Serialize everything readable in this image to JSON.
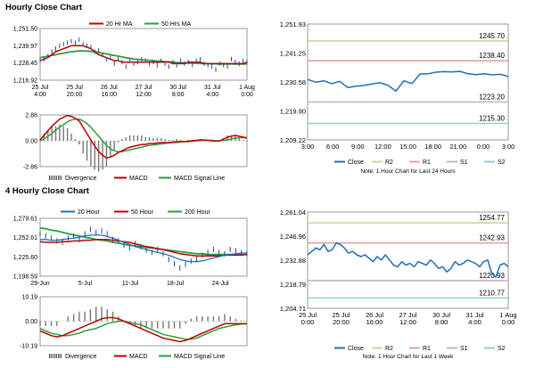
{
  "sections": {
    "hourly_title": "Hourly Close Chart",
    "four_hourly_title": "4 Hourly Close Chart"
  },
  "colors": {
    "price": "#1f4e99",
    "ma_short": "#c00000",
    "ma_long": "#2e9e3e",
    "close": "#1f6fb5",
    "r2": "#c6d9a0",
    "r1": "#e6a0a0",
    "s1": "#c7b3d4",
    "s2": "#92d0d6",
    "divergence_pos": "#666666",
    "divergence_neg": "#aaaaaa"
  },
  "chart_data": [
    {
      "id": "hourly_price",
      "type": "line",
      "legend": [
        "20 Hr MA",
        "50 Hrs MA"
      ],
      "ylim": [
        1216.92,
        1251.5
      ],
      "yticks": [
        1251.5,
        1239.97,
        1228.45,
        1216.92
      ],
      "ytick_labels": [
        "1,251.50",
        "1,239.97",
        "1,228.45",
        "1,216.92"
      ],
      "xtick_labels": [
        [
          "25 Jul",
          "4:00"
        ],
        [
          "25 Jul",
          "20:00"
        ],
        [
          "26 Jul",
          "16:00"
        ],
        [
          "27 Jul",
          "12:00"
        ],
        [
          "30 Jul",
          "8:00"
        ],
        [
          "31 Jul",
          "4:00"
        ],
        [
          "1 Aug",
          "0:00"
        ]
      ],
      "price": [
        1230,
        1231,
        1233,
        1236,
        1238,
        1240,
        1241,
        1242,
        1243,
        1242,
        1244,
        1241,
        1240,
        1239,
        1236,
        1237,
        1234,
        1231,
        1232,
        1228,
        1231,
        1229,
        1226,
        1230,
        1228,
        1229,
        1231,
        1230,
        1228,
        1229,
        1227,
        1230,
        1228,
        1226,
        1229,
        1227,
        1230,
        1228,
        1229,
        1227,
        1230,
        1231,
        1228,
        1227,
        1226,
        1224,
        1228,
        1227,
        1226,
        1231,
        1229,
        1228,
        1230,
        1229
      ],
      "ma20": [
        1230,
        1231,
        1232,
        1234,
        1236,
        1237,
        1238,
        1239,
        1240,
        1240,
        1240,
        1240,
        1239,
        1238,
        1236,
        1234,
        1233,
        1232,
        1231,
        1230,
        1230,
        1229,
        1229,
        1229,
        1229,
        1229,
        1229,
        1229,
        1229,
        1229,
        1229,
        1229,
        1229,
        1229,
        1228,
        1228,
        1228,
        1228,
        1229,
        1229,
        1229,
        1229,
        1228,
        1228,
        1228,
        1228,
        1228,
        1228,
        1228,
        1228,
        1228,
        1228,
        1228,
        1229
      ],
      "ma50": [
        1232,
        1232.5,
        1233,
        1233.5,
        1234,
        1234.5,
        1235,
        1235.5,
        1236,
        1236.2,
        1236.5,
        1236.5,
        1236.4,
        1236.2,
        1236,
        1235.5,
        1235,
        1234.5,
        1234,
        1233.5,
        1233,
        1232.5,
        1232,
        1231.5,
        1231,
        1230.8,
        1230.6,
        1230.4,
        1230.2,
        1230,
        1229.8,
        1229.6,
        1229.4,
        1229.2,
        1229,
        1228.8,
        1228.6,
        1228.5,
        1228.4,
        1228.3,
        1228.2,
        1228.1,
        1228,
        1228,
        1227.9,
        1227.9,
        1227.8,
        1227.8,
        1227.8,
        1227.8,
        1227.8,
        1227.8,
        1227.8,
        1227.8
      ]
    },
    {
      "id": "hourly_macd",
      "type": "line",
      "legend": [
        "Divergence",
        "MACD",
        "MACD Signal Line"
      ],
      "ylim": [
        -2.86,
        2.86
      ],
      "yticks": [
        2.86,
        0,
        -2.86
      ],
      "ytick_labels": [
        "2.86",
        "0.00",
        "-2.86"
      ],
      "macd": [
        0.1,
        0.6,
        1.1,
        1.6,
        2.0,
        2.4,
        2.6,
        2.8,
        2.7,
        2.5,
        2.2,
        1.5,
        0.8,
        0.1,
        -0.6,
        -1.2,
        -1.6,
        -1.9,
        -1.8,
        -1.6,
        -1.3,
        -1.1,
        -0.9,
        -0.7,
        -0.6,
        -0.5,
        -0.4,
        -0.4,
        -0.3,
        -0.3,
        -0.25,
        -0.2,
        -0.2,
        -0.2,
        -0.15,
        -0.1,
        -0.1,
        -0.1,
        -0.05,
        0,
        0.05,
        0.1,
        0.1,
        0.05,
        0,
        -0.05,
        0,
        0.2,
        0.4,
        0.5,
        0.6,
        0.5,
        0.4,
        0.3
      ],
      "signal": [
        0,
        0.2,
        0.5,
        0.8,
        1.2,
        1.5,
        1.8,
        2.1,
        2.3,
        2.4,
        2.4,
        2.2,
        1.9,
        1.5,
        1.0,
        0.5,
        0.0,
        -0.5,
        -0.9,
        -1.1,
        -1.2,
        -1.2,
        -1.1,
        -1.0,
        -0.9,
        -0.8,
        -0.7,
        -0.6,
        -0.5,
        -0.45,
        -0.4,
        -0.35,
        -0.3,
        -0.25,
        -0.2,
        -0.2,
        -0.15,
        -0.1,
        -0.1,
        -0.05,
        0,
        0,
        0.05,
        0.05,
        0.05,
        0,
        0,
        0.05,
        0.1,
        0.2,
        0.3,
        0.35,
        0.35,
        0.35
      ]
    },
    {
      "id": "hourly_levels",
      "type": "line",
      "ylim": [
        1209.22,
        1251.93
      ],
      "yticks": [
        1251.93,
        1241.25,
        1230.58,
        1219.9,
        1209.22
      ],
      "ytick_labels": [
        "1,251.93",
        "1,241.25",
        "1,230.58",
        "1,219.90",
        "1,209.22"
      ],
      "xtick_labels": [
        "3:00",
        "6:00",
        "9:00",
        "12:00",
        "15:00",
        "18:00",
        "21:00",
        "0:00",
        "3:00"
      ],
      "close": [
        1231.5,
        1230.5,
        1231,
        1230,
        1230.8,
        1228.5,
        1229,
        1229.3,
        1229.8,
        1230.3,
        1229.4,
        1227.2,
        1231,
        1230,
        1233.5,
        1233.6,
        1234.2,
        1234.4,
        1234.3,
        1234.5,
        1233.6,
        1233.3,
        1233.6,
        1233.2,
        1233.4,
        1232.6
      ],
      "levels": [
        {
          "name": "R2",
          "value": 1245.7,
          "label": "1245.70"
        },
        {
          "name": "R1",
          "value": 1238.4,
          "label": "1238.40"
        },
        {
          "name": "S1",
          "value": 1223.2,
          "label": "1223.20"
        },
        {
          "name": "S2",
          "value": 1215.3,
          "label": "1215.30"
        }
      ],
      "legend": [
        "Close",
        "R2",
        "R1",
        "S1",
        "S2"
      ],
      "note": "Note: 1 Hour Chart for Last 24 Hours"
    },
    {
      "id": "four_hourly_price",
      "type": "line",
      "legend": [
        "20 Hour",
        "50 Hour",
        "200 Hour"
      ],
      "ylim": [
        1198.59,
        1279.61
      ],
      "yticks": [
        1279.61,
        1252.61,
        1225.6,
        1198.59
      ],
      "ytick_labels": [
        "1,279.61",
        "1,252.61",
        "1,225.60",
        "1,198.59"
      ],
      "xtick_labels": [
        "29-Jun",
        "5-Jul",
        "11-Jul",
        "18-Jul",
        "24-Jul"
      ],
      "price": [
        1258,
        1255,
        1252,
        1248,
        1246,
        1252,
        1255,
        1250,
        1258,
        1264,
        1260,
        1262,
        1258,
        1250,
        1248,
        1242,
        1238,
        1244,
        1240,
        1235,
        1232,
        1236,
        1230,
        1222,
        1216,
        1210,
        1215,
        1220,
        1222,
        1228,
        1232,
        1236,
        1232,
        1230,
        1236,
        1234,
        1232,
        1230
      ],
      "ma20": [
        1250,
        1250,
        1249,
        1249,
        1250,
        1251,
        1252,
        1253,
        1255,
        1256,
        1256,
        1256,
        1254,
        1252,
        1249,
        1246,
        1243,
        1240,
        1238,
        1236,
        1234,
        1232,
        1230,
        1228,
        1225,
        1222,
        1220,
        1219,
        1219,
        1220,
        1222,
        1224,
        1226,
        1228,
        1229,
        1230,
        1231,
        1231
      ],
      "ma50": [
        1247,
        1246,
        1246,
        1246,
        1247,
        1247,
        1248,
        1248,
        1249,
        1249,
        1250,
        1250,
        1250,
        1249,
        1248,
        1247,
        1246,
        1244,
        1242,
        1240,
        1239,
        1237,
        1236,
        1234,
        1232,
        1230,
        1229,
        1228,
        1227,
        1227,
        1227,
        1227,
        1227,
        1228,
        1228,
        1228,
        1228,
        1229
      ],
      "ma200": [
        1266,
        1265,
        1263,
        1262,
        1260,
        1258,
        1256,
        1255,
        1253,
        1252,
        1250,
        1249,
        1248,
        1246,
        1245,
        1243,
        1242,
        1241,
        1240,
        1239,
        1238,
        1237,
        1236,
        1235,
        1234,
        1233,
        1232,
        1231,
        1230,
        1230,
        1229,
        1229,
        1229,
        1229,
        1229,
        1229,
        1229,
        1229
      ]
    },
    {
      "id": "four_hourly_macd",
      "type": "line",
      "legend": [
        "Divergence",
        "MACD",
        "MACD Signal Line"
      ],
      "ylim": [
        -10.19,
        10.19
      ],
      "yticks": [
        10.19,
        0,
        -10.19
      ],
      "ytick_labels": [
        "10.19",
        "0.00",
        "-10.19"
      ],
      "macd": [
        -4,
        -5,
        -6,
        -6.5,
        -6,
        -5,
        -4,
        -3,
        -2,
        -1,
        0,
        1,
        1.5,
        1.5,
        1,
        0,
        -1,
        -2,
        -3,
        -4,
        -5,
        -6,
        -7,
        -7.5,
        -8,
        -8.5,
        -8,
        -7,
        -6,
        -5,
        -4,
        -3,
        -2,
        -1,
        -1,
        -1,
        -1,
        -1
      ],
      "signal": [
        -3,
        -4,
        -5,
        -5.5,
        -6,
        -6,
        -5.5,
        -5,
        -4,
        -3.5,
        -3,
        -2,
        -1,
        -0.5,
        0,
        0,
        -0.5,
        -1,
        -1.5,
        -2.5,
        -3.5,
        -4.5,
        -5.5,
        -6,
        -6.5,
        -7,
        -7.5,
        -7.5,
        -7,
        -6,
        -5,
        -4,
        -3,
        -2.5,
        -2,
        -1.5,
        -1.2,
        -1
      ]
    },
    {
      "id": "four_hourly_levels",
      "type": "line",
      "ylim": [
        1204.71,
        1261.04
      ],
      "yticks": [
        1261.04,
        1246.96,
        1232.88,
        1218.79,
        1204.71
      ],
      "ytick_labels": [
        "1,261.04",
        "1,246.96",
        "1,232.88",
        "1,218.79",
        "1,204.71"
      ],
      "xtick_labels": [
        [
          "25 Jul",
          "0:00"
        ],
        [
          "25 Jul",
          "20:00"
        ],
        [
          "26 Jul",
          "16:00"
        ],
        [
          "27 Jul",
          "12:00"
        ],
        [
          "30 Jul",
          "8:00"
        ],
        [
          "31 Jul",
          "4:00"
        ],
        [
          "1 Aug",
          "0:00"
        ]
      ],
      "close": [
        1236,
        1238,
        1240,
        1239,
        1242,
        1238,
        1239,
        1243,
        1242,
        1240,
        1237,
        1238,
        1236,
        1235,
        1236,
        1234,
        1232,
        1235,
        1233,
        1236,
        1233,
        1230,
        1229,
        1232,
        1230,
        1231,
        1229,
        1232,
        1231,
        1230,
        1233,
        1231,
        1228,
        1229,
        1226,
        1228,
        1232,
        1230,
        1231,
        1233,
        1232,
        1231,
        1229,
        1232,
        1233,
        1225,
        1223,
        1230,
        1231,
        1229
      ],
      "levels": [
        {
          "name": "R2",
          "value": 1254.77,
          "label": "1254.77"
        },
        {
          "name": "R1",
          "value": 1242.93,
          "label": "1242.93"
        },
        {
          "name": "S1",
          "value": 1220.93,
          "label": "1220.93"
        },
        {
          "name": "S2",
          "value": 1210.77,
          "label": "1210.77"
        }
      ],
      "legend": [
        "Close",
        "R2",
        "R1",
        "S1",
        "S2"
      ],
      "note": "Note: 1 Hour Chart for Last 1 Week"
    }
  ]
}
